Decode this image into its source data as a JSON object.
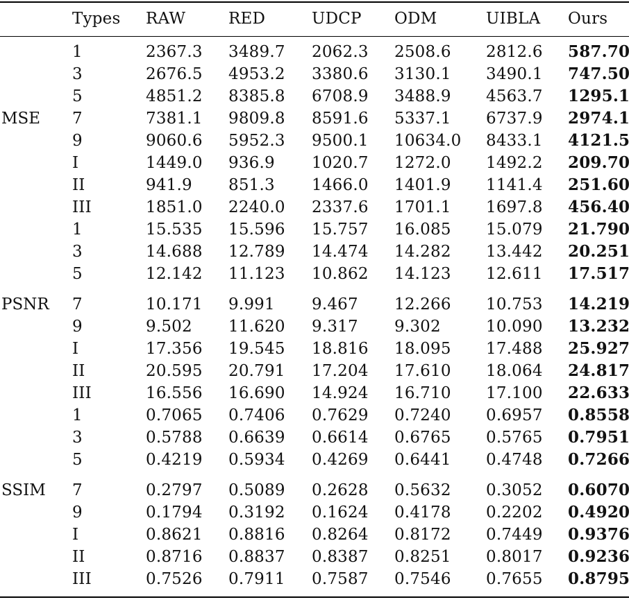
{
  "columns": [
    "Types",
    "RAW",
    "RED",
    "UDCP",
    "ODM",
    "UIBLA",
    "Ours"
  ],
  "groups": [
    {
      "metric": "MSE",
      "rows": [
        {
          "type": "1",
          "values": [
            "2367.3",
            "3489.7",
            "2062.3",
            "2508.6",
            "2812.6",
            "587.70"
          ]
        },
        {
          "type": "3",
          "values": [
            "2676.5",
            "4953.2",
            "3380.6",
            "3130.1",
            "3490.1",
            "747.50"
          ]
        },
        {
          "type": "5",
          "values": [
            "4851.2",
            "8385.8",
            "6708.9",
            "3488.9",
            "4563.7",
            "1295.1"
          ]
        },
        {
          "type": "7",
          "values": [
            "7381.1",
            "9809.8",
            "8591.6",
            "5337.1",
            "6737.9",
            "2974.1"
          ]
        },
        {
          "type": "9",
          "values": [
            "9060.6",
            "5952.3",
            "9500.1",
            "10634.0",
            "8433.1",
            "4121.5"
          ]
        },
        {
          "type": "I",
          "values": [
            "1449.0",
            "936.9",
            "1020.7",
            "1272.0",
            "1492.2",
            "209.70"
          ]
        },
        {
          "type": "II",
          "values": [
            "941.9",
            "851.3",
            "1466.0",
            "1401.9",
            "1141.4",
            "251.60"
          ]
        },
        {
          "type": "III",
          "values": [
            "1851.0",
            "2240.0",
            "2337.6",
            "1701.1",
            "1697.8",
            "456.40"
          ]
        }
      ]
    },
    {
      "metric": "PSNR",
      "rows": [
        {
          "type": "1",
          "values": [
            "15.535",
            "15.596",
            "15.757",
            "16.085",
            "15.079",
            "21.790"
          ]
        },
        {
          "type": "3",
          "values": [
            "14.688",
            "12.789",
            "14.474",
            "14.282",
            "13.442",
            "20.251"
          ]
        },
        {
          "type": "5",
          "values": [
            "12.142",
            "11.123",
            "10.862",
            "14.123",
            "12.611",
            "17.517"
          ]
        },
        {
          "type": "7",
          "values": [
            "10.171",
            "9.991",
            "9.467",
            "12.266",
            "10.753",
            "14.219"
          ]
        },
        {
          "type": "9",
          "values": [
            "9.502",
            "11.620",
            "9.317",
            "9.302",
            "10.090",
            "13.232"
          ]
        },
        {
          "type": "I",
          "values": [
            "17.356",
            "19.545",
            "18.816",
            "18.095",
            "17.488",
            "25.927"
          ]
        },
        {
          "type": "II",
          "values": [
            "20.595",
            "20.791",
            "17.204",
            "17.610",
            "18.064",
            "24.817"
          ]
        },
        {
          "type": "III",
          "values": [
            "16.556",
            "16.690",
            "14.924",
            "16.710",
            "17.100",
            "22.633"
          ]
        }
      ]
    },
    {
      "metric": "SSIM",
      "rows": [
        {
          "type": "1",
          "values": [
            "0.7065",
            "0.7406",
            "0.7629",
            "0.7240",
            "0.6957",
            "0.8558"
          ]
        },
        {
          "type": "3",
          "values": [
            "0.5788",
            "0.6639",
            "0.6614",
            "0.6765",
            "0.5765",
            "0.7951"
          ]
        },
        {
          "type": "5",
          "values": [
            "0.4219",
            "0.5934",
            "0.4269",
            "0.6441",
            "0.4748",
            "0.7266"
          ]
        },
        {
          "type": "7",
          "values": [
            "0.2797",
            "0.5089",
            "0.2628",
            "0.5632",
            "0.3052",
            "0.6070"
          ]
        },
        {
          "type": "9",
          "values": [
            "0.1794",
            "0.3192",
            "0.1624",
            "0.4178",
            "0.2202",
            "0.4920"
          ]
        },
        {
          "type": "I",
          "values": [
            "0.8621",
            "0.8816",
            "0.8264",
            "0.8172",
            "0.7449",
            "0.9376"
          ]
        },
        {
          "type": "II",
          "values": [
            "0.8716",
            "0.8837",
            "0.8387",
            "0.8251",
            "0.8017",
            "0.9236"
          ]
        },
        {
          "type": "III",
          "values": [
            "0.7526",
            "0.7911",
            "0.7587",
            "0.7546",
            "0.7655",
            "0.8795"
          ]
        }
      ]
    }
  ]
}
